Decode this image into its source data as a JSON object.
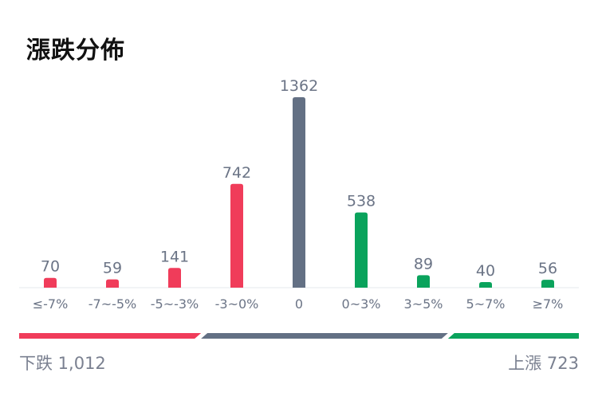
{
  "title": "漲跌分佈",
  "colors": {
    "down": "#f03c5a",
    "flat": "#637084",
    "up": "#0aa35c",
    "label": "#6b7486",
    "baseline": "#e6e8ec"
  },
  "chart_data": {
    "type": "bar",
    "title": "漲跌分佈",
    "categories": [
      "≤-7%",
      "-7~-5%",
      "-5~-3%",
      "-3~0%",
      "0",
      "0~3%",
      "3~5%",
      "5~7%",
      "≥7%"
    ],
    "values": [
      70,
      59,
      141,
      742,
      1362,
      538,
      89,
      40,
      56
    ],
    "groups": [
      "down",
      "down",
      "down",
      "down",
      "flat",
      "up",
      "up",
      "up",
      "up"
    ],
    "ylim": [
      0,
      1362
    ],
    "grid": false,
    "legend": "none"
  },
  "summary": {
    "down_label": "下跌 1,012",
    "up_label": "上漲 723",
    "down_count": 1012,
    "flat_count": 1362,
    "up_count": 723
  }
}
